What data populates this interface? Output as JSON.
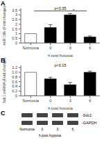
{
  "chart_data": [
    {
      "type": "bar",
      "title": "A",
      "categories": [
        "Normoxia",
        "0",
        "3",
        "6"
      ],
      "values": [
        1.0,
        1.65,
        3.0,
        0.65
      ],
      "errors": [
        0.0,
        0.3,
        0.15,
        0.1
      ],
      "colors": [
        "white",
        "black",
        "black",
        "black"
      ],
      "ylabel": "miR-19b (Fold change)",
      "xlabel": "h post hypoxia",
      "ylim": [
        0,
        3.7
      ],
      "yticks": [
        0,
        0.5,
        1,
        1.5,
        2,
        2.5,
        3,
        3.5
      ],
      "annotations": [
        {
          "text": "p<0.35",
          "x": 1.5,
          "y": 3.42
        },
        {
          "text": "*",
          "x": 2.0,
          "y": 3.18
        }
      ]
    },
    {
      "type": "bar",
      "title": "B",
      "categories": [
        "Normoxia",
        "0",
        "3",
        "6"
      ],
      "values": [
        1.0,
        0.72,
        0.47,
        1.0
      ],
      "errors": [
        0.0,
        0.07,
        0.1,
        0.05
      ],
      "colors": [
        "white",
        "black",
        "black",
        "black"
      ],
      "ylabel": "Sdc1 mRNA (Fold change)",
      "xlabel": "h post hypoxia",
      "ylim": [
        0,
        1.3
      ],
      "yticks": [
        0,
        0.2,
        0.4,
        0.6,
        0.8,
        {
          "value": 1.0,
          "label": "1.0"
        },
        1.2
      ],
      "annotations": [
        {
          "text": "p<0.15",
          "x": 1.5,
          "y": 1.18
        }
      ]
    },
    {
      "type": "blot",
      "title": "C",
      "categories": [
        "Normoxia",
        "0",
        "3",
        "6"
      ],
      "xlabel": "h post hypoxia",
      "series": [
        {
          "name": "-Sdc1",
          "color": "#2a2a2a"
        },
        {
          "name": "-GAPDH",
          "color": "#2a2a2a"
        }
      ]
    }
  ]
}
